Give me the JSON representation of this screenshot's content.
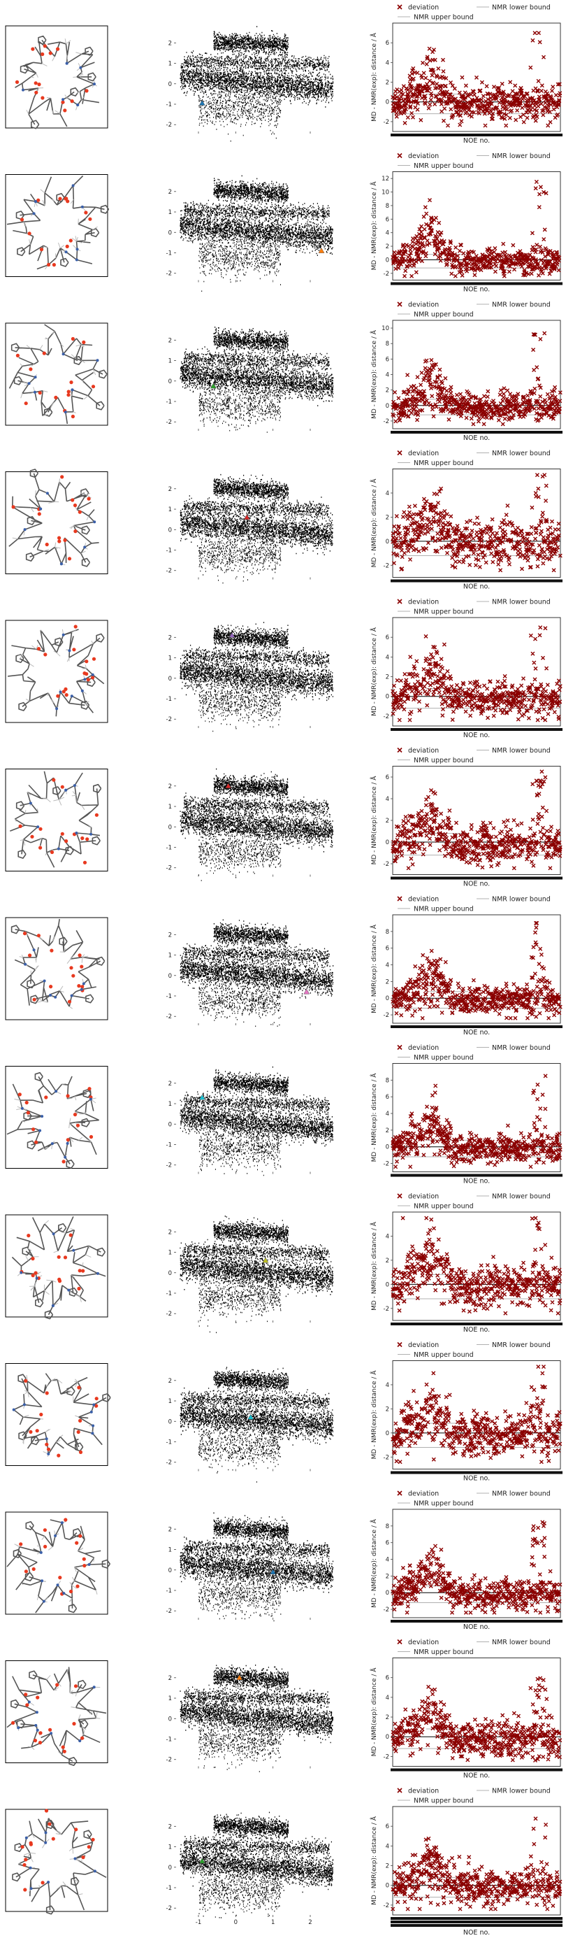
{
  "figure": {
    "legend": {
      "deviation": "deviation",
      "lower": "NMR lower bound",
      "upper": "NMR upper bound"
    },
    "colors": {
      "deviation": "#8b0000",
      "bound_line": "#b0b0b0",
      "zero_line": "#000000",
      "scatter": "#000000",
      "molecule_bond": "#555555",
      "oxygen": "#e8391f",
      "nitrogen": "#3a5fa8"
    },
    "markers": [
      {
        "color": "#1f77b4"
      },
      {
        "color": "#ff7f0e"
      },
      {
        "color": "#2ca02c"
      },
      {
        "color": "#d62728"
      },
      {
        "color": "#9467bd"
      },
      {
        "color": "#d62728"
      },
      {
        "color": "#e377c2"
      },
      {
        "color": "#17becf"
      },
      {
        "color": "#bcbd22"
      },
      {
        "color": "#17becf"
      },
      {
        "color": "#1f77b4"
      },
      {
        "color": "#ff7f0e"
      },
      {
        "color": "#2ca02c"
      }
    ]
  },
  "chart_data": [
    {
      "type": "scatter",
      "row": 1,
      "panel": "projection",
      "xticks": [
        -1,
        0,
        1,
        2
      ],
      "yticks": [
        -2,
        -1,
        0,
        1,
        2
      ],
      "xlim": [
        -1.6,
        2.9
      ],
      "ylim": [
        -2.3,
        2.9
      ],
      "highlight": [
        -0.9,
        -0.95
      ]
    },
    {
      "type": "scatter",
      "row": 1,
      "panel": "deviation",
      "xlabel": "NOE no.",
      "ylabel": "MD - NMR(exp): distance / Å",
      "yticks": [
        -2,
        0,
        2,
        4,
        6
      ],
      "ylim": [
        -3,
        8
      ],
      "max_dev": 7
    },
    {
      "type": "scatter",
      "row": 2,
      "panel": "projection",
      "xticks": [
        -1,
        0,
        1,
        2
      ],
      "yticks": [
        -2,
        -1,
        0,
        1,
        2
      ],
      "xlim": [
        -1.6,
        2.9
      ],
      "ylim": [
        -2.3,
        2.9
      ],
      "highlight": [
        2.3,
        -0.9
      ]
    },
    {
      "type": "scatter",
      "row": 2,
      "panel": "deviation",
      "xlabel": "NOE no.",
      "ylabel": "MD - NMR(exp): distance / Å",
      "yticks": [
        -2,
        0,
        2,
        4,
        6,
        8,
        10,
        12
      ],
      "ylim": [
        -3,
        13
      ],
      "max_dev": 11.5
    },
    {
      "type": "scatter",
      "row": 3,
      "panel": "projection",
      "xticks": [
        -1,
        0,
        1,
        2
      ],
      "yticks": [
        -2,
        -1,
        0,
        1,
        2
      ],
      "xlim": [
        -1.6,
        2.9
      ],
      "ylim": [
        -2.3,
        2.9
      ],
      "highlight": [
        -0.6,
        -0.25
      ]
    },
    {
      "type": "scatter",
      "row": 3,
      "panel": "deviation",
      "xlabel": "NOE no.",
      "ylabel": "MD - NMR(exp): distance / Å",
      "yticks": [
        -2,
        0,
        2,
        4,
        6,
        8,
        10
      ],
      "ylim": [
        -3,
        11
      ],
      "max_dev": 9.5
    },
    {
      "type": "scatter",
      "row": 4,
      "panel": "projection",
      "xticks": [
        -1,
        0,
        1,
        2
      ],
      "yticks": [
        -2,
        -1,
        0,
        1,
        2
      ],
      "xlim": [
        -1.6,
        2.9
      ],
      "ylim": [
        -2.3,
        2.9
      ],
      "highlight": [
        0.3,
        0.6
      ]
    },
    {
      "type": "scatter",
      "row": 4,
      "panel": "deviation",
      "xlabel": "NOE no.",
      "ylabel": "MD - NMR(exp): distance / Å",
      "yticks": [
        -2,
        0,
        2,
        4
      ],
      "ylim": [
        -3,
        6
      ],
      "max_dev": 5.5
    },
    {
      "type": "scatter",
      "row": 5,
      "panel": "projection",
      "xticks": [
        -1,
        0,
        1,
        2
      ],
      "yticks": [
        -2,
        -1,
        0,
        1,
        2
      ],
      "xlim": [
        -1.6,
        2.9
      ],
      "ylim": [
        -2.3,
        2.9
      ],
      "highlight": [
        -0.1,
        2.1
      ]
    },
    {
      "type": "scatter",
      "row": 5,
      "panel": "deviation",
      "xlabel": "NOE no.",
      "ylabel": "MD - NMR(exp): distance / Å",
      "yticks": [
        -2,
        0,
        2,
        4,
        6
      ],
      "ylim": [
        -3,
        8
      ],
      "max_dev": 7
    },
    {
      "type": "scatter",
      "row": 6,
      "panel": "projection",
      "xticks": [
        -1,
        0,
        1,
        2
      ],
      "yticks": [
        -2,
        -1,
        0,
        1,
        2
      ],
      "xlim": [
        -1.6,
        2.9
      ],
      "ylim": [
        -2.3,
        2.9
      ],
      "highlight": [
        -0.2,
        2.0
      ]
    },
    {
      "type": "scatter",
      "row": 6,
      "panel": "deviation",
      "xlabel": "NOE no.",
      "ylabel": "MD - NMR(exp): distance / Å",
      "yticks": [
        -2,
        0,
        2,
        4,
        6
      ],
      "ylim": [
        -3,
        7
      ],
      "max_dev": 6.5
    },
    {
      "type": "scatter",
      "row": 7,
      "panel": "projection",
      "xticks": [
        -1,
        0,
        1,
        2
      ],
      "yticks": [
        -2,
        -1,
        0,
        1,
        2
      ],
      "xlim": [
        -1.6,
        2.9
      ],
      "ylim": [
        -2.3,
        2.9
      ],
      "highlight": [
        1.9,
        -0.8
      ]
    },
    {
      "type": "scatter",
      "row": 7,
      "panel": "deviation",
      "xlabel": "NOE no.",
      "ylabel": "MD - NMR(exp): distance / Å",
      "yticks": [
        -2,
        0,
        2,
        4,
        6,
        8
      ],
      "ylim": [
        -3,
        10
      ],
      "max_dev": 9
    },
    {
      "type": "scatter",
      "row": 8,
      "panel": "projection",
      "xticks": [
        -1,
        0,
        1,
        2
      ],
      "yticks": [
        -2,
        -1,
        0,
        1,
        2
      ],
      "xlim": [
        -1.6,
        2.9
      ],
      "ylim": [
        -2.3,
        2.9
      ],
      "highlight": [
        -0.9,
        1.3
      ]
    },
    {
      "type": "scatter",
      "row": 8,
      "panel": "deviation",
      "xlabel": "NOE no.",
      "ylabel": "MD - NMR(exp): distance / Å",
      "yticks": [
        -2,
        0,
        2,
        4,
        6,
        8
      ],
      "ylim": [
        -3,
        10
      ],
      "max_dev": 8.5
    },
    {
      "type": "scatter",
      "row": 9,
      "panel": "projection",
      "xticks": [
        -1,
        0,
        1,
        2
      ],
      "yticks": [
        -2,
        -1,
        0,
        1,
        2
      ],
      "xlim": [
        -1.6,
        2.9
      ],
      "ylim": [
        -2.3,
        2.9
      ],
      "highlight": [
        0.8,
        0.6
      ]
    },
    {
      "type": "scatter",
      "row": 9,
      "panel": "deviation",
      "xlabel": "NOE no.",
      "ylabel": "MD - NMR(exp): distance / Å",
      "yticks": [
        -2,
        0,
        2,
        4
      ],
      "ylim": [
        -3,
        6
      ],
      "max_dev": 5.5
    },
    {
      "type": "scatter",
      "row": 10,
      "panel": "projection",
      "xticks": [
        -1,
        0,
        1,
        2
      ],
      "yticks": [
        -2,
        -1,
        0,
        1,
        2
      ],
      "xlim": [
        -1.6,
        2.9
      ],
      "ylim": [
        -2.3,
        2.9
      ],
      "highlight": [
        0.4,
        0.2
      ]
    },
    {
      "type": "scatter",
      "row": 10,
      "panel": "deviation",
      "xlabel": "NOE no.",
      "ylabel": "MD - NMR(exp): distance / Å",
      "yticks": [
        -2,
        0,
        2,
        4
      ],
      "ylim": [
        -3,
        6
      ],
      "max_dev": 5.5
    },
    {
      "type": "scatter",
      "row": 11,
      "panel": "projection",
      "xticks": [
        -1,
        0,
        1,
        2
      ],
      "yticks": [
        -2,
        -1,
        0,
        1,
        2
      ],
      "xlim": [
        -1.6,
        2.9
      ],
      "ylim": [
        -2.3,
        2.9
      ],
      "highlight": [
        1.0,
        -0.1
      ]
    },
    {
      "type": "scatter",
      "row": 11,
      "panel": "deviation",
      "xlabel": "NOE no.",
      "ylabel": "MD - NMR(exp): distance / Å",
      "yticks": [
        -2,
        0,
        2,
        4,
        6,
        8
      ],
      "ylim": [
        -3,
        10
      ],
      "max_dev": 8.5
    },
    {
      "type": "scatter",
      "row": 12,
      "panel": "projection",
      "xticks": [
        -1,
        0,
        1,
        2
      ],
      "yticks": [
        -2,
        -1,
        0,
        1,
        2
      ],
      "xlim": [
        -1.6,
        2.9
      ],
      "ylim": [
        -2.3,
        2.9
      ],
      "highlight": [
        0.1,
        2.0
      ]
    },
    {
      "type": "scatter",
      "row": 12,
      "panel": "deviation",
      "xlabel": "NOE no.",
      "ylabel": "MD - NMR(exp): distance / Å",
      "yticks": [
        -2,
        0,
        2,
        4,
        6
      ],
      "ylim": [
        -3,
        8
      ],
      "max_dev": 7
    },
    {
      "type": "scatter",
      "row": 13,
      "panel": "projection",
      "xticks": [
        -1,
        0,
        1,
        2
      ],
      "yticks": [
        -2,
        -1,
        0,
        1,
        2
      ],
      "xlim": [
        -1.6,
        2.9
      ],
      "ylim": [
        -2.3,
        2.9
      ],
      "highlight": [
        -0.9,
        0.3
      ]
    },
    {
      "type": "scatter",
      "row": 13,
      "panel": "deviation",
      "xlabel": "NOE no.",
      "ylabel": "MD - NMR(exp): distance / Å",
      "yticks": [
        -2,
        0,
        2,
        4,
        6
      ],
      "ylim": [
        -3,
        8
      ],
      "max_dev": 7.2
    }
  ]
}
